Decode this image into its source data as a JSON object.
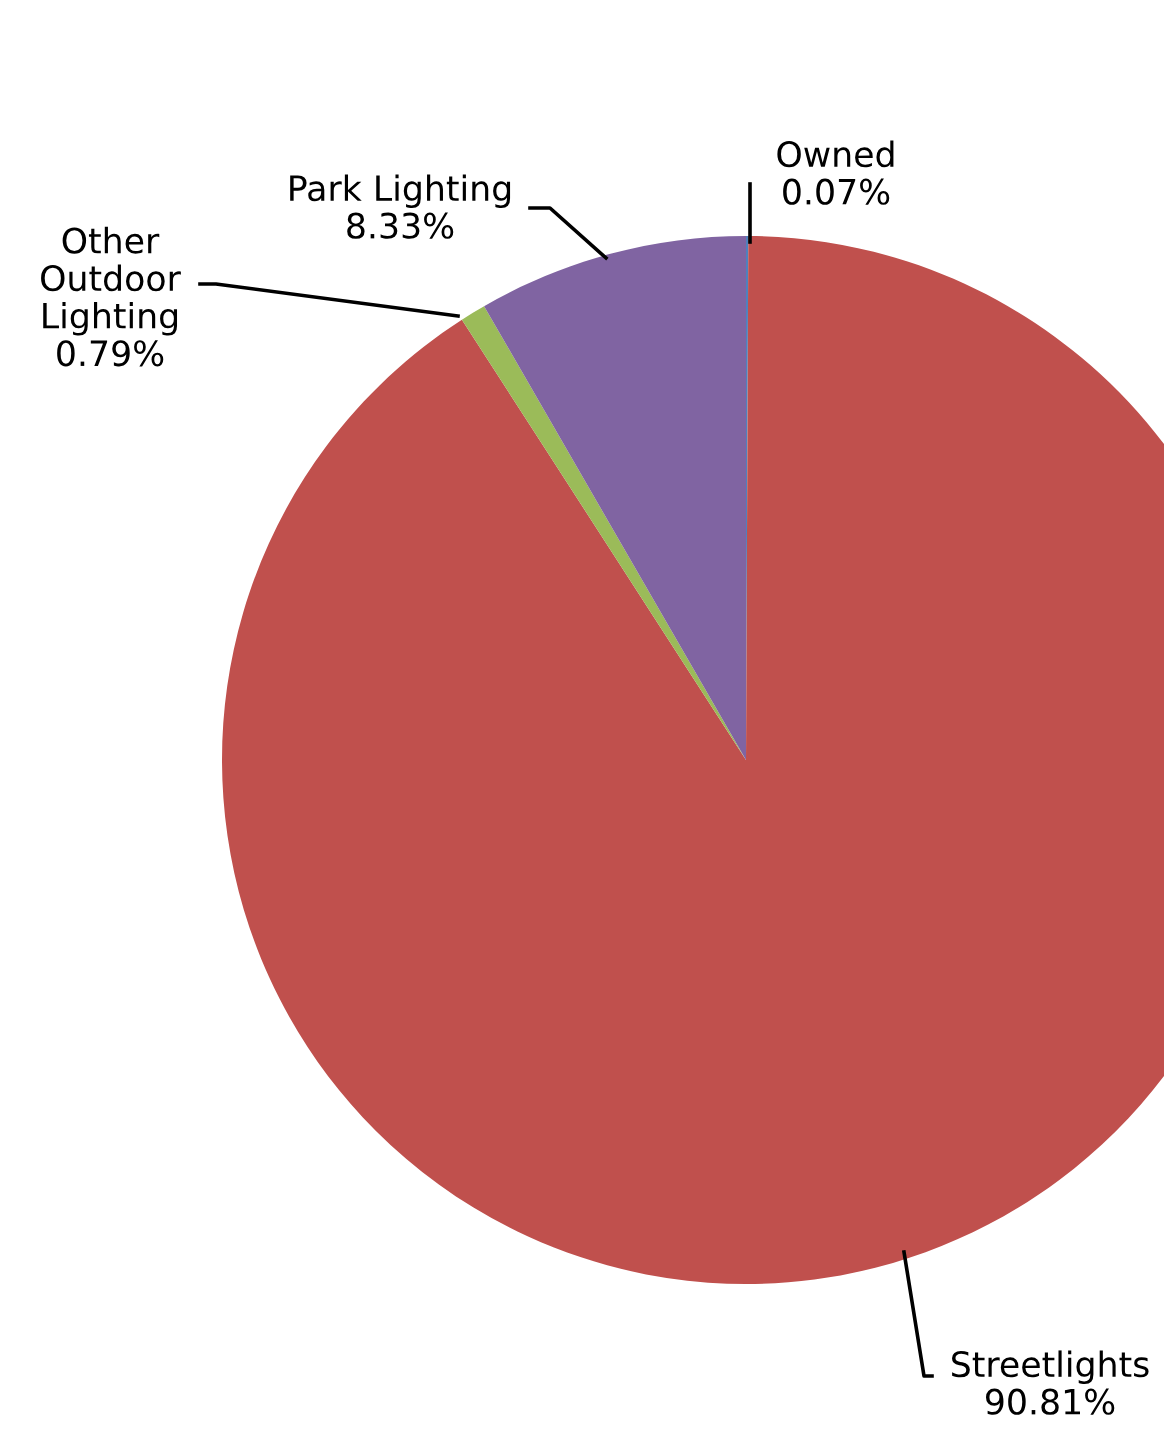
{
  "chart_data": {
    "type": "pie",
    "categories": [
      "Owned",
      "Streetlights",
      "Other Outdoor Lighting",
      "Park Lighting"
    ],
    "values": [
      0.07,
      90.81,
      0.79,
      8.33
    ],
    "colors": [
      "#4f81bd",
      "#c0504d",
      "#9bbb59",
      "#8064a2"
    ],
    "value_labels": [
      "0.07%",
      "90.81%",
      "0.79%",
      "8.33%"
    ]
  }
}
